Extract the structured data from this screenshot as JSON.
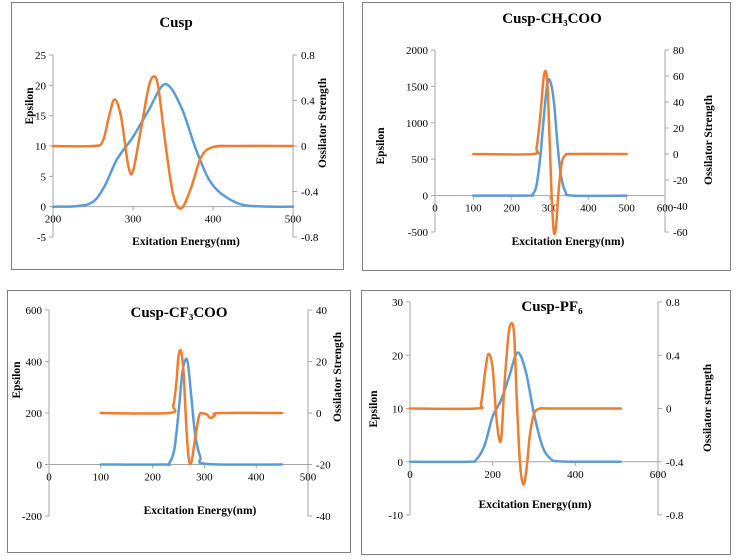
{
  "chart_data": [
    {
      "type": "line",
      "title": "Cusp",
      "xlabel": "Exitation Energy(nm)",
      "ylabel": "Epsilon",
      "y2label": "Ossilator Strength",
      "xlim": [
        200,
        500
      ],
      "xticks": [
        200,
        300,
        400,
        500
      ],
      "ylim": [
        -5,
        25
      ],
      "yticks": [
        -5,
        0,
        5,
        10,
        15,
        20,
        25
      ],
      "y2lim": [
        -0.8,
        0.8
      ],
      "y2ticks": [
        -0.8,
        -0.4,
        0,
        0.4,
        0.8
      ],
      "series": [
        {
          "name": "Epsilon",
          "axis": "left",
          "color": "#5b9bd5",
          "x": [
            200,
            230,
            250,
            265,
            280,
            300,
            320,
            340,
            360,
            380,
            400,
            430,
            460,
            500
          ],
          "y": [
            0,
            0.1,
            0.8,
            3.5,
            7.8,
            11.5,
            16,
            20.2,
            16.5,
            9,
            3.5,
            0.6,
            0.05,
            0
          ]
        },
        {
          "name": "Ossilator Strength",
          "axis": "right",
          "color": "#ed7d31",
          "x": [
            200,
            250,
            262,
            270,
            277,
            285,
            294,
            300,
            310,
            320,
            327,
            332,
            340,
            350,
            360,
            372,
            385,
            400,
            430,
            500
          ],
          "y": [
            0,
            0,
            0.04,
            0.26,
            0.41,
            0.26,
            -0.17,
            -0.22,
            0.15,
            0.53,
            0.61,
            0.5,
            0.05,
            -0.42,
            -0.55,
            -0.38,
            -0.1,
            -0.01,
            0,
            0
          ]
        }
      ]
    },
    {
      "type": "line",
      "title": "Cusp-CH₃COO",
      "xlabel": "Excitation Energy(nm)",
      "ylabel": "Epsilon",
      "y2label": "Ossilator  Strength",
      "xlim": [
        0,
        600
      ],
      "xticks": [
        0,
        100,
        200,
        300,
        400,
        500,
        600
      ],
      "ylim": [
        -500,
        2000
      ],
      "yticks": [
        -500,
        0,
        500,
        1000,
        1500,
        2000
      ],
      "y2lim": [
        -60,
        80
      ],
      "y2ticks": [
        -60,
        -40,
        -20,
        0,
        20,
        40,
        60,
        80
      ],
      "series": [
        {
          "name": "Epsilon",
          "axis": "left",
          "color": "#5b9bd5",
          "x": [
            100,
            240,
            255,
            265,
            275,
            285,
            293,
            300,
            310,
            318,
            328,
            340,
            360,
            500
          ],
          "y": [
            0,
            0,
            20,
            150,
            550,
            1150,
            1530,
            1580,
            1300,
            800,
            300,
            60,
            0,
            0
          ]
        },
        {
          "name": "Ossilator Strength",
          "axis": "right",
          "color": "#ed7d31",
          "x": [
            100,
            255,
            265,
            275,
            282,
            288,
            293,
            298,
            304,
            310,
            316,
            322,
            330,
            340,
            360,
            500
          ],
          "y": [
            0,
            0,
            5,
            30,
            55,
            64,
            55,
            20,
            -30,
            -60,
            -55,
            -30,
            -8,
            -1,
            0,
            0
          ]
        }
      ]
    },
    {
      "type": "line",
      "title": "Cusp-CF₃COO",
      "xlabel": "Excitation Energy(nm)",
      "ylabel": "Epsilon",
      "y2label": "Ossilator Strength",
      "xlim": [
        0,
        500
      ],
      "xticks": [
        0,
        100,
        200,
        300,
        400,
        500
      ],
      "ylim": [
        -200,
        600
      ],
      "yticks": [
        -200,
        0,
        200,
        400,
        600
      ],
      "y2lim": [
        -40,
        40
      ],
      "y2ticks": [
        -40,
        -20,
        0,
        20,
        40
      ],
      "series": [
        {
          "name": "Epsilon",
          "axis": "left",
          "color": "#5b9bd5",
          "x": [
            100,
            220,
            232,
            242,
            250,
            257,
            263,
            268,
            274,
            282,
            292,
            305,
            450
          ],
          "y": [
            0,
            0,
            5,
            60,
            200,
            350,
            405,
            395,
            280,
            120,
            30,
            2,
            0
          ]
        },
        {
          "name": "Ossilator Strength",
          "axis": "right",
          "color": "#ed7d31",
          "x": [
            100,
            232,
            240,
            246,
            250,
            255,
            260,
            265,
            270,
            275,
            282,
            290,
            298,
            305,
            312,
            320,
            330,
            450
          ],
          "y": [
            0,
            0,
            3,
            12,
            22,
            24,
            15,
            -5,
            -18,
            -19,
            -10,
            -1,
            -0.2,
            -0.6,
            -2,
            -1,
            0,
            0
          ]
        }
      ]
    },
    {
      "type": "line",
      "title": "Cusp-PF₆",
      "xlabel": "Excitation Energy(nm)",
      "ylabel": "Epsilon",
      "y2label": "Ossilator strength",
      "xlim": [
        0,
        600
      ],
      "xticks": [
        0,
        200,
        400,
        600
      ],
      "ylim": [
        -10,
        30
      ],
      "yticks": [
        -10,
        0,
        10,
        20,
        30
      ],
      "y2lim": [
        -0.8,
        0.8
      ],
      "y2ticks": [
        -0.8,
        -0.4,
        0,
        0.4,
        0.8
      ],
      "series": [
        {
          "name": "Epsilon",
          "axis": "left",
          "color": "#5b9bd5",
          "x": [
            0,
            140,
            160,
            180,
            200,
            220,
            240,
            260,
            280,
            300,
            320,
            340,
            370,
            510
          ],
          "y": [
            0,
            0,
            0.4,
            3,
            8.5,
            11.5,
            16,
            20.5,
            17,
            9,
            3,
            0.6,
            0.05,
            0
          ]
        },
        {
          "name": "Ossilator Strength",
          "axis": "right",
          "color": "#ed7d31",
          "x": [
            0,
            160,
            172,
            182,
            190,
            200,
            210,
            220,
            228,
            238,
            246,
            252,
            258,
            266,
            274,
            282,
            290,
            300,
            315,
            340,
            510
          ],
          "y": [
            0,
            0,
            0.04,
            0.28,
            0.41,
            0.3,
            -0.1,
            -0.24,
            0.15,
            0.55,
            0.64,
            0.55,
            0.1,
            -0.4,
            -0.57,
            -0.45,
            -0.2,
            -0.04,
            0,
            0,
            0
          ]
        }
      ]
    }
  ]
}
